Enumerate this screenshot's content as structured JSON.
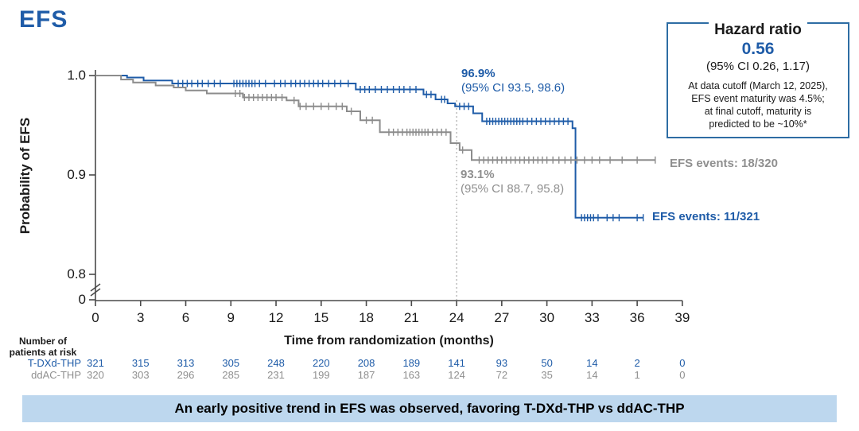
{
  "page_title": "EFS",
  "hazard_box": {
    "legend": "Hazard ratio",
    "value": "0.56",
    "ci": "(95% CI 0.26, 1.17)",
    "note_lines": [
      "At data cutoff (March 12, 2025),",
      "EFS event maturity was 4.5%;",
      "at final cutoff, maturity is",
      "predicted to be ~10%*"
    ]
  },
  "annotations": {
    "tdxd": {
      "pct": "96.9%",
      "ci": "(95% CI 93.5, 98.6)"
    },
    "ddac": {
      "pct": "93.1%",
      "ci": "(95% CI 88.7, 95.8)"
    }
  },
  "events": {
    "ddac": "EFS events: 18/320",
    "tdxd": "EFS events: 11/321"
  },
  "axes": {
    "ylabel": "Probability of EFS",
    "xlabel": "Time from randomization (months)"
  },
  "risk_table": {
    "header_lines": [
      "Number of",
      "patients at risk"
    ]
  },
  "banner": {
    "text": "An early positive trend in EFS was observed, favoring T-DXd-THP vs ddAC-THP"
  },
  "colors": {
    "blue": "#1f5ca8",
    "gray": "#8c8c8c",
    "banner_bg": "#bdd7ee",
    "box_border": "#2e6da4",
    "axis": "#4a4a4a",
    "ref_line": "#9a9a9a"
  },
  "chart_data": {
    "type": "line",
    "subtype": "kaplan-meier-step",
    "title": "EFS",
    "xlabel": "Time from randomization (months)",
    "ylabel": "Probability of EFS",
    "xlim": [
      0,
      39
    ],
    "x_ticks": [
      0,
      3,
      6,
      9,
      12,
      15,
      18,
      21,
      24,
      27,
      30,
      33,
      36,
      39
    ],
    "y_tick_labels": [
      "1.0",
      "0.9",
      "0.8",
      "0"
    ],
    "y_axis_break": true,
    "reference_line_x": 24,
    "series": [
      {
        "name": "T-DXd-THP",
        "color_key": "blue",
        "landmark_24mo": "96.9% (95% CI 93.5, 98.6)",
        "events": "11/321",
        "steps": [
          [
            0,
            1.0
          ],
          [
            2.1,
            0.998
          ],
          [
            3.2,
            0.995
          ],
          [
            5.1,
            0.992
          ],
          [
            17.3,
            0.986
          ],
          [
            21.8,
            0.981
          ],
          [
            22.6,
            0.976
          ],
          [
            23.4,
            0.972
          ],
          [
            23.9,
            0.969
          ],
          [
            25.1,
            0.962
          ],
          [
            25.7,
            0.954
          ],
          [
            31.7,
            0.947
          ],
          [
            31.9,
            0.857
          ],
          [
            36.4,
            0.857
          ]
        ],
        "censor_months": [
          5.5,
          5.8,
          6.1,
          6.4,
          6.8,
          7.1,
          7.5,
          7.9,
          8.3,
          9.2,
          9.4,
          9.6,
          9.8,
          10.0,
          10.2,
          10.4,
          10.6,
          10.9,
          11.3,
          11.9,
          12.3,
          12.6,
          13.0,
          13.3,
          13.6,
          13.9,
          14.2,
          14.5,
          14.8,
          15.1,
          15.5,
          15.9,
          16.3,
          16.8,
          17.6,
          17.9,
          18.2,
          18.6,
          19.0,
          19.4,
          19.8,
          20.2,
          20.5,
          20.9,
          21.3,
          22.0,
          22.3,
          23.0,
          23.2,
          24.2,
          24.5,
          24.8,
          26.0,
          26.2,
          26.4,
          26.6,
          26.8,
          27.0,
          27.2,
          27.4,
          27.6,
          27.8,
          28.0,
          28.2,
          28.4,
          28.7,
          29.0,
          29.3,
          29.6,
          29.9,
          30.2,
          30.5,
          30.8,
          31.1,
          31.4,
          32.3,
          32.5,
          32.7,
          32.9,
          33.1,
          33.4,
          34.0,
          34.4,
          34.8,
          36.0,
          36.4
        ],
        "at_risk": [
          321,
          315,
          313,
          305,
          248,
          220,
          208,
          189,
          141,
          93,
          50,
          14,
          2,
          0
        ]
      },
      {
        "name": "ddAC-THP",
        "color_key": "gray",
        "landmark_24mo": "93.1% (95% CI 88.7, 95.8)",
        "events": "18/320",
        "steps": [
          [
            0,
            1.0
          ],
          [
            1.7,
            0.996
          ],
          [
            2.5,
            0.993
          ],
          [
            4.0,
            0.99
          ],
          [
            5.2,
            0.988
          ],
          [
            6.0,
            0.985
          ],
          [
            7.4,
            0.982
          ],
          [
            9.8,
            0.978
          ],
          [
            12.7,
            0.975
          ],
          [
            13.5,
            0.969
          ],
          [
            16.7,
            0.964
          ],
          [
            17.6,
            0.955
          ],
          [
            18.9,
            0.943
          ],
          [
            23.6,
            0.932
          ],
          [
            24.2,
            0.925
          ],
          [
            25.0,
            0.915
          ],
          [
            37.2,
            0.915
          ]
        ],
        "censor_months": [
          9.3,
          9.6,
          9.9,
          10.2,
          10.5,
          10.8,
          11.1,
          11.4,
          11.7,
          12.0,
          12.4,
          13.2,
          13.6,
          14.0,
          14.5,
          15.0,
          15.5,
          16.0,
          16.4,
          17.0,
          18.0,
          18.4,
          19.5,
          19.8,
          20.1,
          20.4,
          20.7,
          20.9,
          21.1,
          21.3,
          21.5,
          21.7,
          21.9,
          22.1,
          22.4,
          22.7,
          23.0,
          23.3,
          24.4,
          25.5,
          25.8,
          26.1,
          26.4,
          26.7,
          27.0,
          27.3,
          27.6,
          27.9,
          28.2,
          28.5,
          28.8,
          29.1,
          29.4,
          29.7,
          30.0,
          30.4,
          30.8,
          31.2,
          31.6,
          32.0,
          32.5,
          33.0,
          33.5,
          34.2,
          35.0,
          36.0,
          37.2
        ],
        "at_risk": [
          320,
          303,
          296,
          285,
          231,
          199,
          187,
          163,
          124,
          72,
          35,
          14,
          1,
          0
        ]
      }
    ]
  }
}
